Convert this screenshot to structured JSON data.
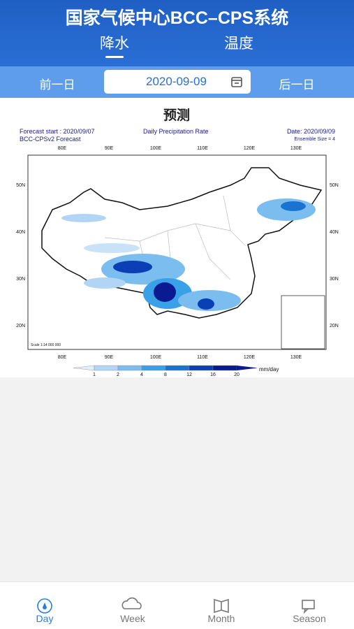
{
  "header": {
    "title": "国家气候中心BCC–CPS系统",
    "tabs": [
      "降水",
      "温度"
    ]
  },
  "date_bar": {
    "prev": "前一日",
    "date": "2020-09-09",
    "next": "后一日"
  },
  "section": {
    "title": "预测"
  },
  "map": {
    "forecast_start": "Forecast start : 2020/09/07",
    "model": "BCC-CPSv2 Forecast",
    "variable": "Daily Precipitation Rate",
    "date": "Date: 2020/09/09",
    "ensemble": "Ensemble Size = 4",
    "lon_labels": [
      "80E",
      "90E",
      "100E",
      "110E",
      "120E",
      "130E"
    ],
    "lat_labels": [
      "50N",
      "40N",
      "30N",
      "20N"
    ],
    "scale": "Scale 1:14 000 000",
    "colorbar_ticks": [
      1,
      2,
      4,
      8,
      12,
      16,
      20
    ],
    "colorbar_unit": "mm/day"
  },
  "nav": [
    "Day",
    "Week",
    "Month",
    "Season"
  ]
}
